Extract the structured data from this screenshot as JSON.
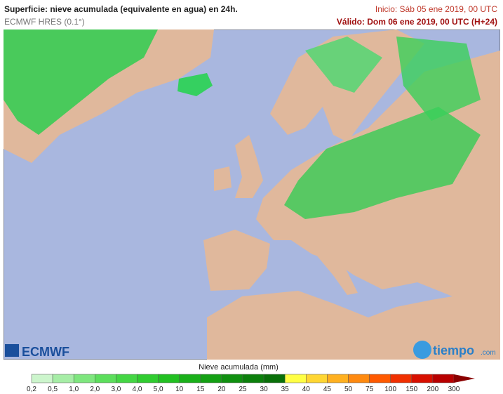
{
  "header": {
    "title": "Superficie: nieve acumulada (equivalente en agua) en 24h.",
    "model": "ECMWF HRES (0.1°)",
    "start": "Inicio: Sáb 05 ene 2019, 00 UTC",
    "valid": "Válido: Dom 06 ene 2019, 00 UTC (H+24)"
  },
  "logos": {
    "left": "ECMWF",
    "right": "tiempo",
    "right_suffix": ".com"
  },
  "legend": {
    "title": "Nieve acumulada (mm)",
    "labels": [
      "0,2",
      "0,5",
      "1,0",
      "2,0",
      "3,0",
      "4,0",
      "5,0",
      "10",
      "15",
      "20",
      "25",
      "30",
      "35",
      "40",
      "45",
      "50",
      "75",
      "100",
      "150",
      "200",
      "300"
    ],
    "colors": [
      "#ccf5cc",
      "#a6eda6",
      "#7ee67e",
      "#5cde5c",
      "#44d644",
      "#30cc30",
      "#22c022",
      "#1ab01a",
      "#14a014",
      "#109010",
      "#0c800c",
      "#097009",
      "#ffff44",
      "#ffd633",
      "#ffb020",
      "#ff8a10",
      "#ff5a00",
      "#f03000",
      "#d81000",
      "#b80000"
    ],
    "arrow_color": "#8a0000"
  }
}
